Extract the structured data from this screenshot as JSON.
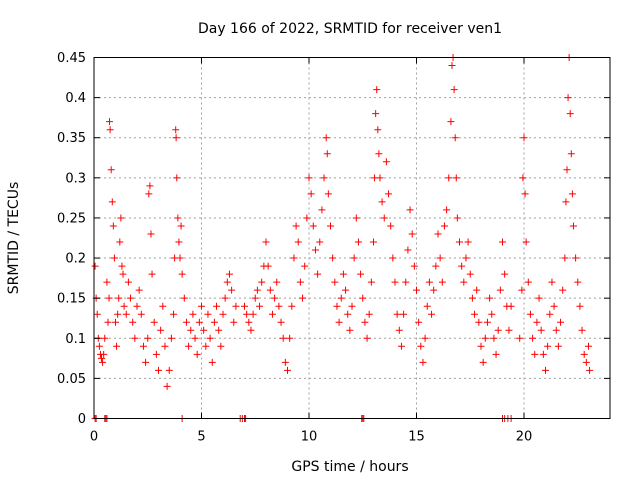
{
  "chart_data": {
    "type": "scatter",
    "title": "Day 166 of 2022, SRMTID for receiver ven1",
    "xlabel": "GPS time / hours",
    "ylabel": "SRMTID / TECUs",
    "xlim": [
      0,
      24
    ],
    "ylim": [
      0,
      0.45
    ],
    "xticks": [
      0,
      5,
      10,
      15,
      20
    ],
    "yticks": [
      0,
      0.05,
      0.1,
      0.15,
      0.2,
      0.25,
      0.3,
      0.35,
      0.4,
      0.45
    ],
    "xtick_labels": [
      "0",
      "5",
      "10",
      "15",
      "20"
    ],
    "ytick_labels": [
      "0",
      "0.05",
      "0.1",
      "0.15",
      "0.2",
      "0.25",
      "0.3",
      "0.35",
      "0.4",
      "0.45"
    ],
    "grid": true,
    "marker": "plus",
    "marker_color": "#ff0000",
    "series": [
      {
        "name": "SRMTID",
        "points": [
          [
            0.05,
            0.19
          ],
          [
            0.1,
            0.15
          ],
          [
            0.15,
            0.13
          ],
          [
            0.2,
            0.1
          ],
          [
            0.25,
            0.09
          ],
          [
            0.3,
            0.08
          ],
          [
            0.35,
            0.075
          ],
          [
            0.4,
            0.07
          ],
          [
            0.45,
            0.08
          ],
          [
            0.5,
            0.1
          ],
          [
            0.6,
            0.17
          ],
          [
            0.65,
            0.12
          ],
          [
            0.7,
            0.15
          ],
          [
            0.72,
            0.37
          ],
          [
            0.75,
            0.36
          ],
          [
            0.8,
            0.31
          ],
          [
            0.85,
            0.27
          ],
          [
            0.9,
            0.24
          ],
          [
            0.95,
            0.2
          ],
          [
            1.0,
            0.12
          ],
          [
            1.05,
            0.09
          ],
          [
            1.1,
            0.13
          ],
          [
            1.15,
            0.15
          ],
          [
            1.2,
            0.22
          ],
          [
            1.25,
            0.25
          ],
          [
            1.3,
            0.19
          ],
          [
            1.35,
            0.18
          ],
          [
            1.4,
            0.14
          ],
          [
            1.5,
            0.13
          ],
          [
            1.6,
            0.17
          ],
          [
            1.7,
            0.15
          ],
          [
            1.8,
            0.12
          ],
          [
            1.9,
            0.1
          ],
          [
            2.0,
            0.14
          ],
          [
            2.1,
            0.16
          ],
          [
            2.2,
            0.13
          ],
          [
            2.3,
            0.09
          ],
          [
            2.4,
            0.07
          ],
          [
            2.5,
            0.1
          ],
          [
            2.55,
            0.28
          ],
          [
            2.6,
            0.29
          ],
          [
            2.65,
            0.23
          ],
          [
            2.7,
            0.18
          ],
          [
            2.8,
            0.12
          ],
          [
            2.9,
            0.08
          ],
          [
            3.0,
            0.06
          ],
          [
            3.1,
            0.11
          ],
          [
            3.2,
            0.14
          ],
          [
            3.3,
            0.09
          ],
          [
            3.4,
            0.04
          ],
          [
            3.5,
            0.06
          ],
          [
            3.6,
            0.1
          ],
          [
            3.7,
            0.13
          ],
          [
            3.75,
            0.2
          ],
          [
            3.8,
            0.36
          ],
          [
            3.82,
            0.35
          ],
          [
            3.85,
            0.3
          ],
          [
            3.9,
            0.25
          ],
          [
            3.95,
            0.22
          ],
          [
            4.0,
            0.2
          ],
          [
            4.05,
            0.24
          ],
          [
            4.1,
            0.18
          ],
          [
            4.2,
            0.15
          ],
          [
            4.3,
            0.12
          ],
          [
            4.4,
            0.09
          ],
          [
            4.5,
            0.11
          ],
          [
            4.6,
            0.13
          ],
          [
            4.7,
            0.1
          ],
          [
            4.8,
            0.08
          ],
          [
            4.9,
            0.12
          ],
          [
            5.0,
            0.14
          ],
          [
            5.1,
            0.11
          ],
          [
            5.2,
            0.09
          ],
          [
            5.3,
            0.13
          ],
          [
            5.4,
            0.1
          ],
          [
            5.5,
            0.07
          ],
          [
            5.6,
            0.12
          ],
          [
            5.7,
            0.14
          ],
          [
            5.8,
            0.11
          ],
          [
            5.9,
            0.09
          ],
          [
            6.0,
            0.13
          ],
          [
            6.1,
            0.15
          ],
          [
            6.2,
            0.17
          ],
          [
            6.3,
            0.18
          ],
          [
            6.4,
            0.16
          ],
          [
            6.5,
            0.12
          ],
          [
            6.6,
            0.14
          ],
          [
            7.0,
            0.14
          ],
          [
            7.1,
            0.13
          ],
          [
            7.2,
            0.12
          ],
          [
            7.3,
            0.11
          ],
          [
            7.4,
            0.13
          ],
          [
            7.5,
            0.15
          ],
          [
            7.6,
            0.16
          ],
          [
            7.7,
            0.14
          ],
          [
            7.8,
            0.17
          ],
          [
            7.9,
            0.19
          ],
          [
            8.0,
            0.22
          ],
          [
            8.1,
            0.19
          ],
          [
            8.2,
            0.16
          ],
          [
            8.3,
            0.13
          ],
          [
            8.4,
            0.15
          ],
          [
            8.5,
            0.17
          ],
          [
            8.6,
            0.14
          ],
          [
            8.7,
            0.12
          ],
          [
            8.8,
            0.1
          ],
          [
            8.9,
            0.07
          ],
          [
            9.0,
            0.06
          ],
          [
            9.1,
            0.1
          ],
          [
            9.2,
            0.14
          ],
          [
            9.3,
            0.2
          ],
          [
            9.4,
            0.24
          ],
          [
            9.5,
            0.22
          ],
          [
            9.6,
            0.17
          ],
          [
            9.7,
            0.15
          ],
          [
            9.8,
            0.19
          ],
          [
            9.9,
            0.25
          ],
          [
            10.0,
            0.3
          ],
          [
            10.1,
            0.28
          ],
          [
            10.2,
            0.24
          ],
          [
            10.3,
            0.21
          ],
          [
            10.4,
            0.18
          ],
          [
            10.5,
            0.22
          ],
          [
            10.6,
            0.26
          ],
          [
            10.7,
            0.3
          ],
          [
            10.8,
            0.35
          ],
          [
            10.85,
            0.33
          ],
          [
            10.9,
            0.28
          ],
          [
            11.0,
            0.24
          ],
          [
            11.1,
            0.2
          ],
          [
            11.2,
            0.17
          ],
          [
            11.3,
            0.14
          ],
          [
            11.4,
            0.12
          ],
          [
            11.5,
            0.15
          ],
          [
            11.6,
            0.18
          ],
          [
            11.7,
            0.16
          ],
          [
            11.8,
            0.13
          ],
          [
            11.9,
            0.11
          ],
          [
            12.0,
            0.14
          ],
          [
            12.1,
            0.2
          ],
          [
            12.2,
            0.25
          ],
          [
            12.3,
            0.22
          ],
          [
            12.4,
            0.18
          ],
          [
            12.5,
            0.15
          ],
          [
            12.6,
            0.12
          ],
          [
            12.7,
            0.1
          ],
          [
            12.8,
            0.13
          ],
          [
            12.9,
            0.17
          ],
          [
            13.0,
            0.22
          ],
          [
            13.05,
            0.3
          ],
          [
            13.1,
            0.38
          ],
          [
            13.15,
            0.41
          ],
          [
            13.2,
            0.36
          ],
          [
            13.25,
            0.33
          ],
          [
            13.3,
            0.3
          ],
          [
            13.4,
            0.27
          ],
          [
            13.5,
            0.25
          ],
          [
            13.6,
            0.32
          ],
          [
            13.7,
            0.28
          ],
          [
            13.8,
            0.24
          ],
          [
            13.9,
            0.2
          ],
          [
            14.0,
            0.17
          ],
          [
            14.1,
            0.13
          ],
          [
            14.2,
            0.11
          ],
          [
            14.3,
            0.09
          ],
          [
            14.4,
            0.13
          ],
          [
            14.5,
            0.17
          ],
          [
            14.6,
            0.21
          ],
          [
            14.7,
            0.26
          ],
          [
            14.8,
            0.23
          ],
          [
            14.9,
            0.19
          ],
          [
            15.0,
            0.16
          ],
          [
            15.1,
            0.12
          ],
          [
            15.2,
            0.09
          ],
          [
            15.3,
            0.07
          ],
          [
            15.4,
            0.1
          ],
          [
            15.5,
            0.14
          ],
          [
            15.6,
            0.17
          ],
          [
            15.7,
            0.13
          ],
          [
            15.8,
            0.16
          ],
          [
            15.9,
            0.19
          ],
          [
            16.0,
            0.23
          ],
          [
            16.1,
            0.2
          ],
          [
            16.2,
            0.17
          ],
          [
            16.3,
            0.24
          ],
          [
            16.4,
            0.26
          ],
          [
            16.5,
            0.3
          ],
          [
            16.6,
            0.37
          ],
          [
            16.65,
            0.44
          ],
          [
            16.7,
            0.45
          ],
          [
            16.75,
            0.41
          ],
          [
            16.8,
            0.35
          ],
          [
            16.85,
            0.3
          ],
          [
            16.9,
            0.25
          ],
          [
            17.0,
            0.22
          ],
          [
            17.1,
            0.19
          ],
          [
            17.2,
            0.17
          ],
          [
            17.3,
            0.2
          ],
          [
            17.4,
            0.22
          ],
          [
            17.5,
            0.18
          ],
          [
            17.6,
            0.15
          ],
          [
            17.7,
            0.13
          ],
          [
            17.8,
            0.16
          ],
          [
            17.9,
            0.12
          ],
          [
            18.0,
            0.09
          ],
          [
            18.1,
            0.07
          ],
          [
            18.2,
            0.1
          ],
          [
            18.3,
            0.12
          ],
          [
            18.4,
            0.15
          ],
          [
            18.5,
            0.13
          ],
          [
            18.6,
            0.1
          ],
          [
            18.7,
            0.08
          ],
          [
            18.8,
            0.11
          ],
          [
            18.9,
            0.16
          ],
          [
            19.0,
            0.22
          ],
          [
            19.1,
            0.18
          ],
          [
            19.2,
            0.14
          ],
          [
            19.3,
            0.11
          ],
          [
            19.4,
            0.14
          ],
          [
            19.8,
            0.1
          ],
          [
            19.9,
            0.16
          ],
          [
            19.95,
            0.3
          ],
          [
            20.0,
            0.35
          ],
          [
            20.05,
            0.28
          ],
          [
            20.1,
            0.22
          ],
          [
            20.2,
            0.17
          ],
          [
            20.3,
            0.13
          ],
          [
            20.4,
            0.1
          ],
          [
            20.5,
            0.08
          ],
          [
            20.6,
            0.12
          ],
          [
            20.7,
            0.15
          ],
          [
            20.8,
            0.11
          ],
          [
            20.9,
            0.08
          ],
          [
            21.0,
            0.06
          ],
          [
            21.1,
            0.09
          ],
          [
            21.2,
            0.13
          ],
          [
            21.3,
            0.17
          ],
          [
            21.4,
            0.14
          ],
          [
            21.5,
            0.11
          ],
          [
            21.6,
            0.09
          ],
          [
            21.7,
            0.12
          ],
          [
            21.8,
            0.16
          ],
          [
            21.9,
            0.2
          ],
          [
            21.95,
            0.27
          ],
          [
            22.0,
            0.31
          ],
          [
            22.05,
            0.4
          ],
          [
            22.1,
            0.45
          ],
          [
            22.15,
            0.38
          ],
          [
            22.2,
            0.33
          ],
          [
            22.25,
            0.28
          ],
          [
            22.3,
            0.24
          ],
          [
            22.4,
            0.2
          ],
          [
            22.5,
            0.17
          ],
          [
            22.6,
            0.14
          ],
          [
            22.7,
            0.11
          ],
          [
            22.8,
            0.08
          ],
          [
            22.9,
            0.07
          ],
          [
            23.0,
            0.09
          ],
          [
            23.05,
            0.06
          ]
        ],
        "zero_points": [
          0.05,
          0.1,
          0.5,
          0.55,
          0.6,
          4.1,
          6.8,
          6.9,
          7.0,
          7.05,
          12.45,
          12.5,
          12.55,
          19.0,
          19.1,
          19.25,
          19.4
        ]
      }
    ]
  }
}
